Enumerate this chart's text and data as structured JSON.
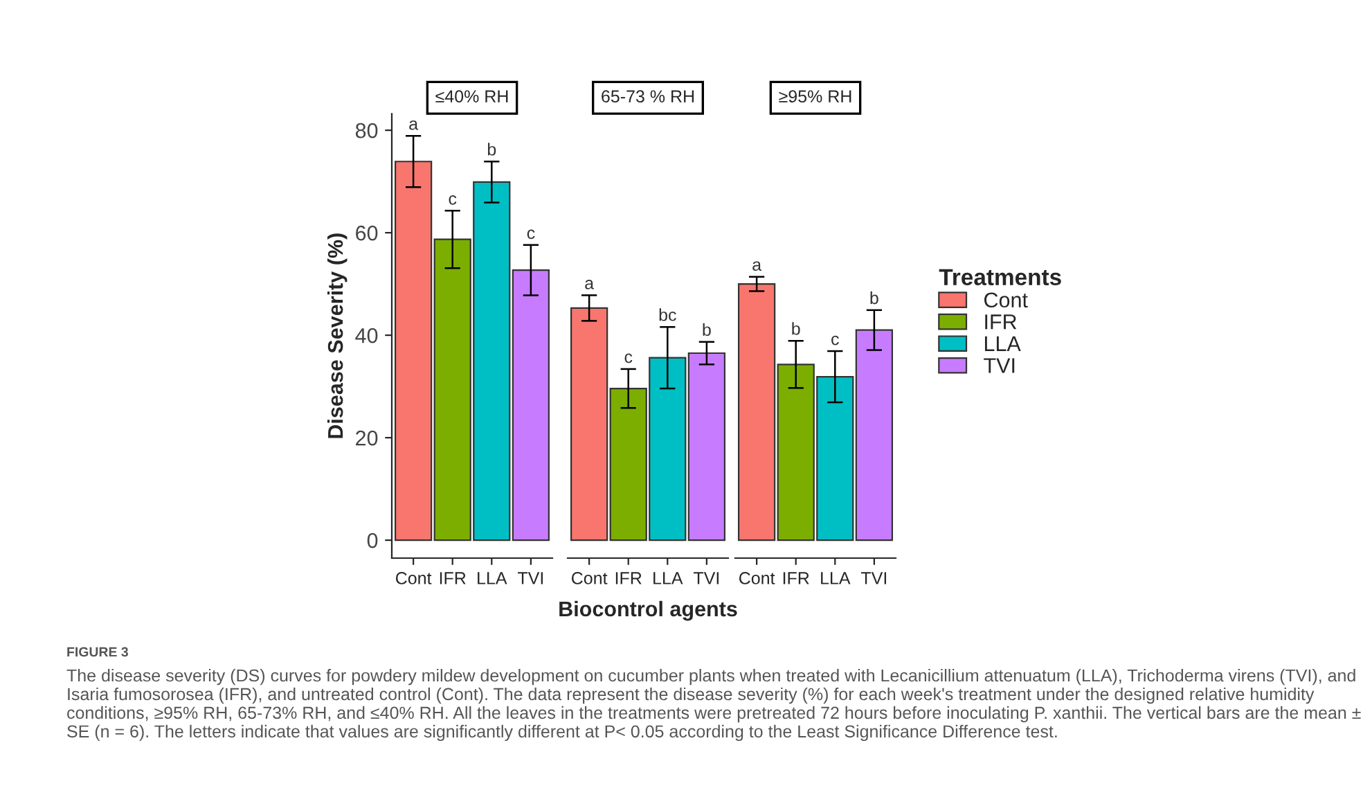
{
  "chart_data": [
    {
      "type": "bar",
      "title": "≤40% RH",
      "ylabel": "Disease Severity (%)",
      "categories": [
        "Cont",
        "IFR",
        "LLA",
        "TVI"
      ],
      "ylim": [
        -3.5,
        83.2
      ],
      "yticks": [
        0,
        20,
        40,
        60,
        80
      ],
      "series": [
        {
          "color": "#f8766d",
          "values": [
            73.9,
            null,
            null,
            null
          ],
          "errors": [
            5.0,
            null,
            null,
            null
          ]
        },
        {
          "color": "#7cae00",
          "values": [
            null,
            58.7,
            null,
            null
          ],
          "errors": [
            null,
            5.6,
            null,
            null
          ]
        },
        {
          "color": "#00bfc4",
          "values": [
            null,
            null,
            69.9,
            null
          ],
          "errors": [
            null,
            null,
            4.0,
            null
          ]
        },
        {
          "color": "#c77cff",
          "values": [
            null,
            null,
            null,
            52.7
          ],
          "errors": [
            null,
            null,
            null,
            4.9
          ]
        }
      ],
      "annotations": [
        {
          "text": "a",
          "x": "Cont",
          "y": 78.9
        },
        {
          "text": "c",
          "x": "IFR",
          "y": 64.3
        },
        {
          "text": "b",
          "x": "LLA",
          "y": 73.9
        },
        {
          "text": "c",
          "x": "TVI",
          "y": 57.6
        }
      ]
    },
    {
      "type": "bar",
      "title": "65-73 % RH",
      "xlabel": "Biocontrol agents",
      "categories": [
        "Cont",
        "IFR",
        "LLA",
        "TVI"
      ],
      "ylim": [
        -3.5,
        80
      ],
      "yticks": [
        0,
        20,
        40,
        60,
        80
      ],
      "tick_labels": "x",
      "series": [
        {
          "color": "#f8766d",
          "values": [
            45.3,
            null,
            null,
            null
          ],
          "errors": [
            2.5,
            null,
            null,
            null
          ]
        },
        {
          "color": "#7cae00",
          "values": [
            null,
            29.6,
            null,
            null
          ],
          "errors": [
            null,
            3.8,
            null,
            null
          ]
        },
        {
          "color": "#00bfc4",
          "values": [
            null,
            null,
            35.6,
            null
          ],
          "errors": [
            null,
            null,
            6.0,
            null
          ]
        },
        {
          "color": "#c77cff",
          "values": [
            null,
            null,
            null,
            36.5
          ],
          "errors": [
            null,
            null,
            null,
            2.2
          ]
        }
      ],
      "annotations": [
        {
          "text": "a",
          "x": "Cont",
          "y": 47.8
        },
        {
          "text": "c",
          "x": "IFR",
          "y": 33.4
        },
        {
          "text": "bc",
          "x": "LLA",
          "y": 41.6
        },
        {
          "text": "b",
          "x": "TVI",
          "y": 38.7
        }
      ]
    },
    {
      "type": "bar",
      "title": "≥95% RH",
      "legend_title": "Treatments",
      "legend": "right",
      "categories": [
        "Cont",
        "IFR",
        "LLA",
        "TVI"
      ],
      "ylim": [
        -3.5,
        80
      ],
      "yticks": [
        0,
        20,
        40,
        60,
        80
      ],
      "tick_labels": "x",
      "series": [
        {
          "name": "Cont",
          "color": "#f8766d",
          "values": [
            50.0,
            null,
            null,
            null
          ],
          "errors": [
            1.4,
            null,
            null,
            null
          ]
        },
        {
          "name": "IFR",
          "color": "#7cae00",
          "values": [
            null,
            34.3,
            null,
            null
          ],
          "errors": [
            null,
            4.6,
            null,
            null
          ]
        },
        {
          "name": "LLA",
          "color": "#00bfc4",
          "values": [
            null,
            null,
            31.9,
            null
          ],
          "errors": [
            null,
            null,
            5.0,
            null
          ]
        },
        {
          "name": "TVI",
          "color": "#c77cff",
          "values": [
            null,
            null,
            null,
            41.0
          ],
          "errors": [
            null,
            null,
            null,
            3.9
          ]
        }
      ],
      "annotations": [
        {
          "text": "a",
          "x": "Cont",
          "y": 51.4
        },
        {
          "text": "b",
          "x": "IFR",
          "y": 38.9
        },
        {
          "text": "c",
          "x": "LLA",
          "y": 36.9
        },
        {
          "text": "b",
          "x": "TVI",
          "y": 44.9
        },
        "FIGURE 3",
        "The disease severity (DS) curves for powdery mildew development on cucumber plants when treated with Lecanicillium attenuatum (LLA), Trichoderma virens (TVI), and Isaria fumosorosea (IFR), and untreated control (Cont). The data represent the disease severity (%) for each week's treatment under the designed relative humidity conditions, ≥95% RH, 65-73% RH, and ≤40% RH. All the leaves in the treatments were pretreated 72 hours before inoculating P. xanthii. The vertical bars are the mean ± SE (n = 6). The letters indicate that values are significantly different at P< 0.05 according to the Least Significance Difference test."
      ]
    }
  ]
}
